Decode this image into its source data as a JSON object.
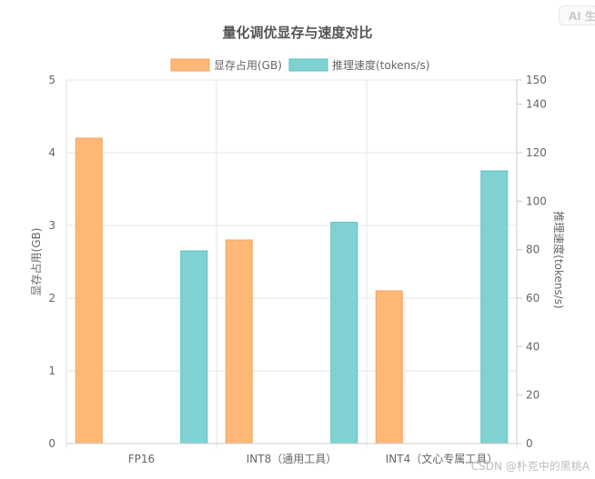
{
  "badge": {
    "label": "AI 生"
  },
  "watermark": "CSDN @朴克中的黑桃A",
  "chart_data": {
    "type": "bar",
    "title": "量化调优显存与速度对比",
    "categories": [
      "FP16",
      "INT8（通用工具）",
      "INT4（文心专属工具）"
    ],
    "series": [
      {
        "name": "显存占用(GB)",
        "axis": "left",
        "values": [
          4.2,
          2.8,
          2.1
        ],
        "color": "#ffb878",
        "border": "#f7a35c"
      },
      {
        "name": "推理速度(tokens/s)",
        "axis": "right",
        "values": [
          79.5,
          91.3,
          112.5
        ],
        "color": "#80d2d2",
        "border": "#5cc2c2"
      }
    ],
    "y_left": {
      "label": "显存占用(GB)",
      "min": 0,
      "max": 5,
      "ticks": [
        0,
        1,
        2,
        3,
        4,
        5
      ]
    },
    "y_right": {
      "label": "推理速度(tokens/s)",
      "min": 0,
      "max": 150,
      "ticks": [
        0,
        20,
        40,
        60,
        80,
        100,
        120,
        140,
        150
      ]
    },
    "legend_position": "top",
    "grid": true
  }
}
